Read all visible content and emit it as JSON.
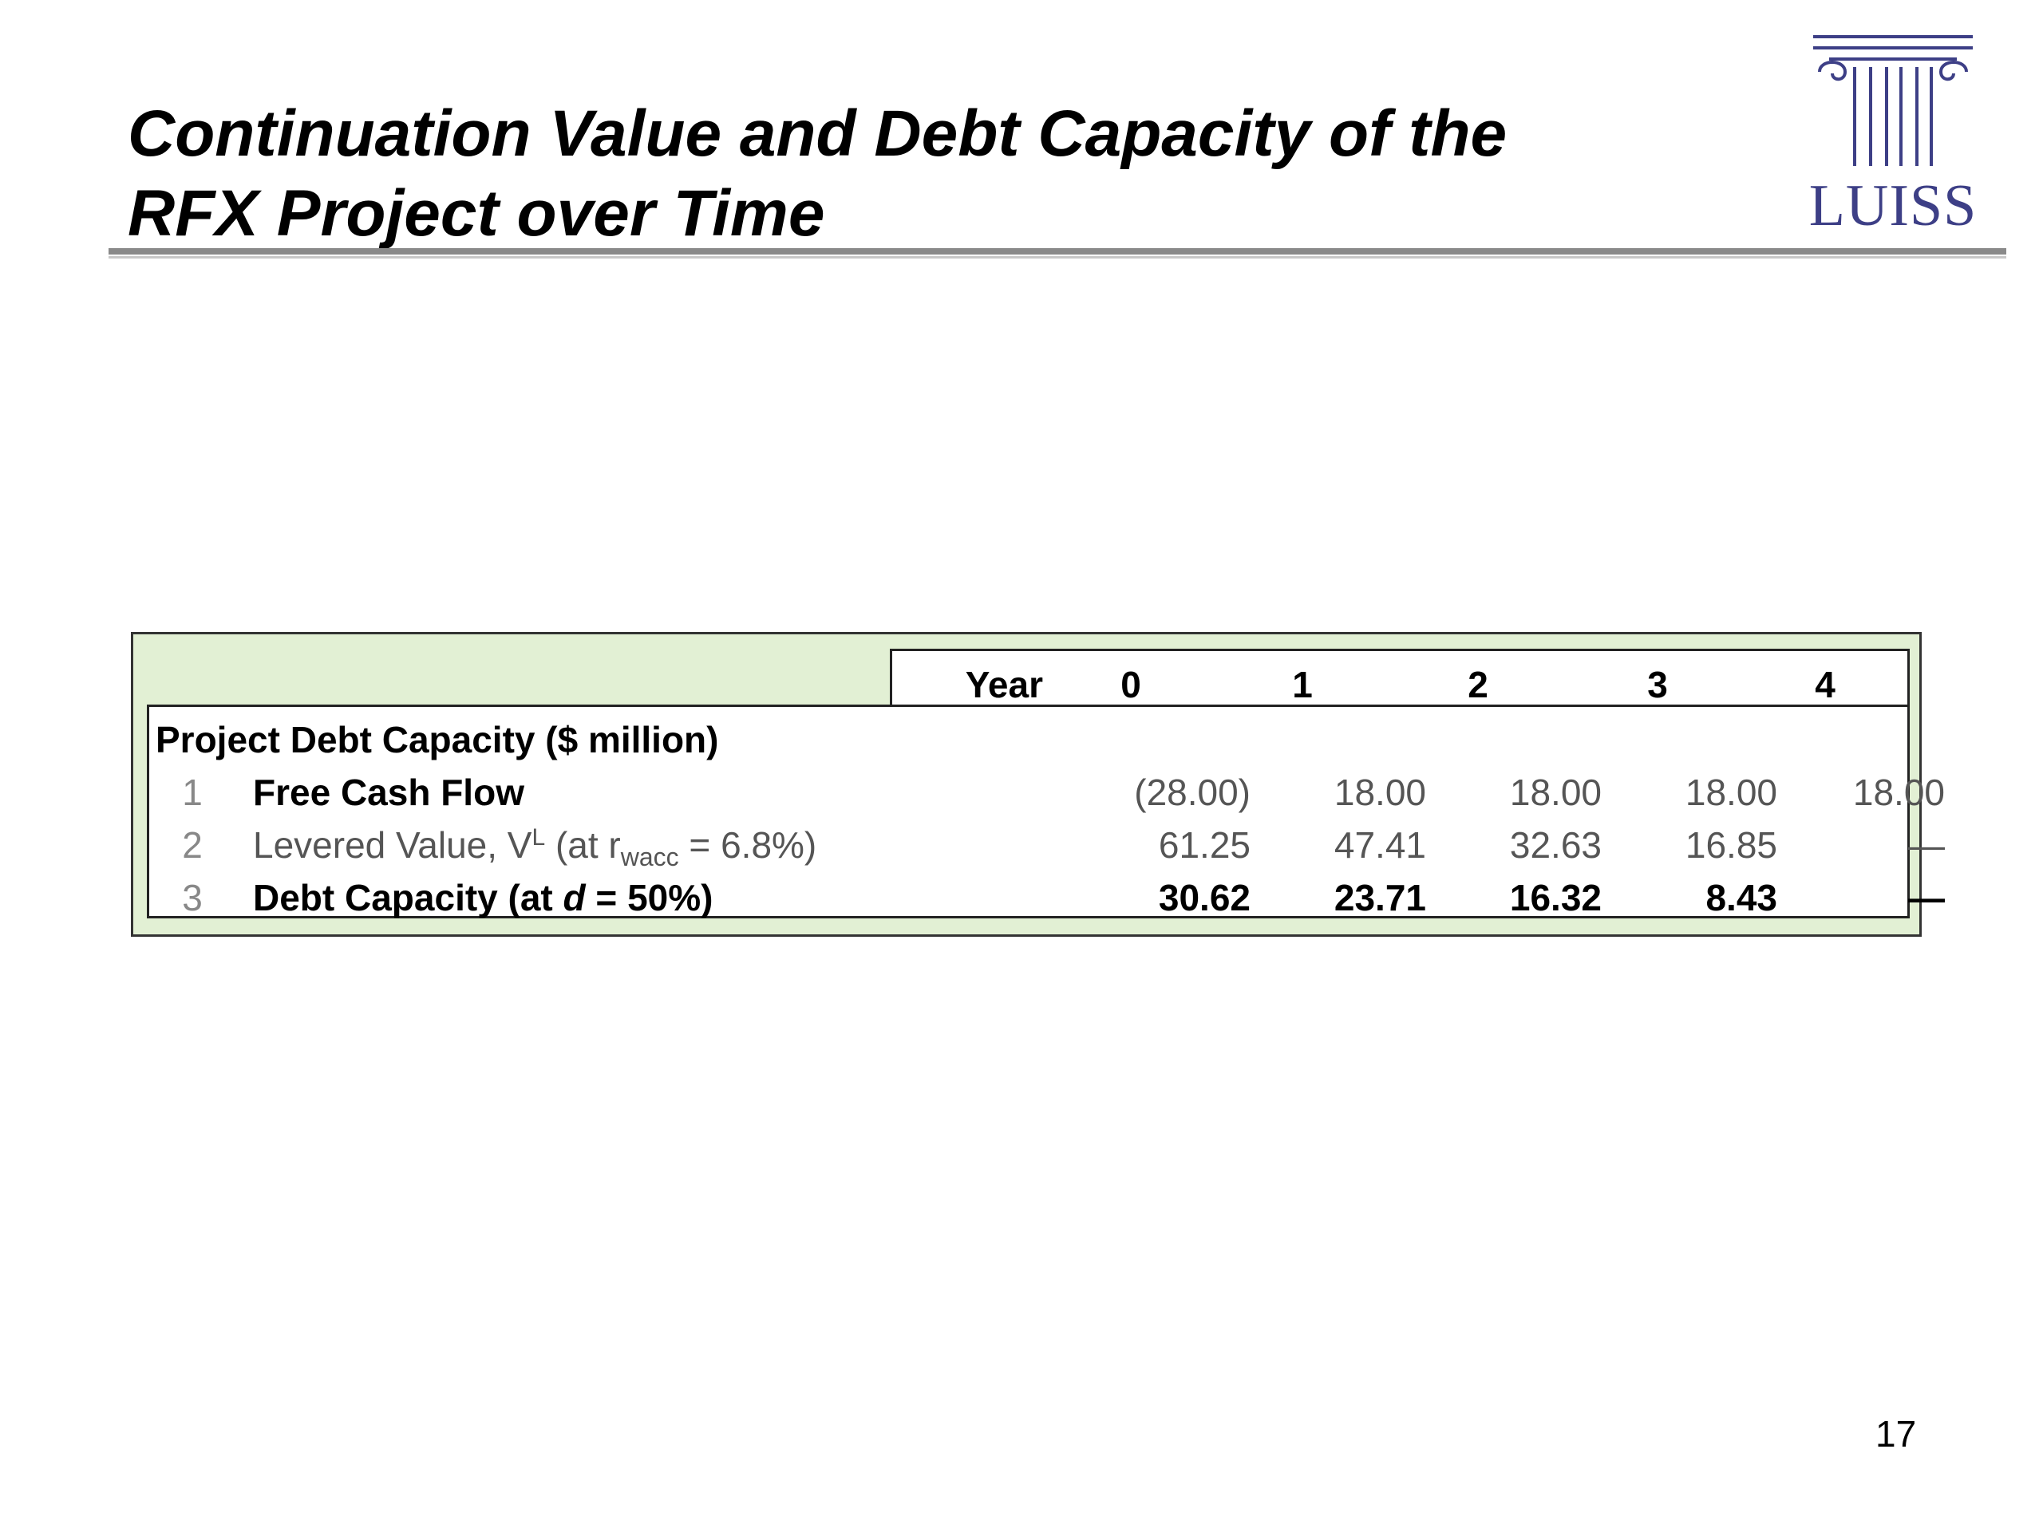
{
  "slide": {
    "title_line1": "Continuation Value and Debt Capacity of the",
    "title_line2": "RFX Project over Time",
    "page_number": "17"
  },
  "logo": {
    "text": "LUISS",
    "icon": "column-icon",
    "color": "#3d3f86"
  },
  "table": {
    "year_label": "Year",
    "years": [
      "0",
      "1",
      "2",
      "3",
      "4"
    ],
    "section_title": "Project Debt Capacity ($ million)",
    "rows": [
      {
        "num": "1",
        "label": "Free Cash Flow",
        "values": [
          "(28.00)",
          "18.00",
          "18.00",
          "18.00",
          "18.00"
        ]
      },
      {
        "num": "2",
        "label_prefix": "Levered Value, V",
        "label_sup": "L",
        "label_mid": " (at r",
        "label_sub": "wacc",
        "label_suffix": " = 6.8%)",
        "values": [
          "61.25",
          "47.41",
          "32.63",
          "16.85",
          "—"
        ]
      },
      {
        "num": "3",
        "label_prefix": "Debt Capacity (at ",
        "label_italic": "d",
        "label_suffix": " = 50%)",
        "values": [
          "30.62",
          "23.71",
          "16.32",
          "8.43",
          "—"
        ]
      }
    ],
    "colors": {
      "panel_background": "#e2f0d4"
    }
  }
}
